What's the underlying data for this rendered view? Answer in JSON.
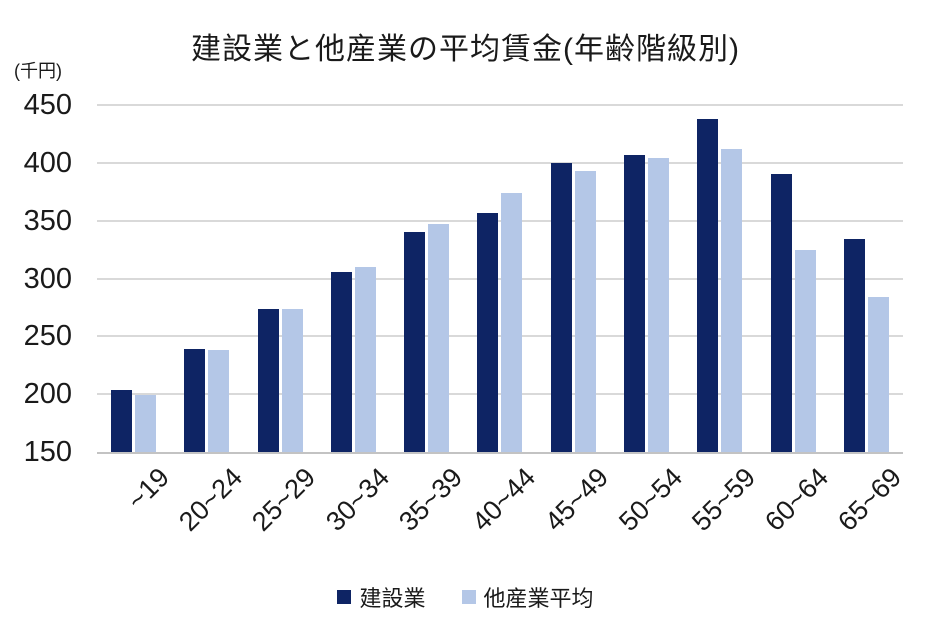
{
  "title": "建設業と他産業の平均賃金(年齢階級別)",
  "unit_label": "(千円)",
  "colors": {
    "background": "#FFFFFF",
    "gridline": "#D9D9D9",
    "axis_line": "#C3C3C3",
    "text": "#1A1A1A",
    "series_construction": "#0E2464",
    "series_other": "#B4C7E7"
  },
  "legend": {
    "position": "bottom",
    "items": [
      {
        "label": "建設業",
        "color": "#0E2464"
      },
      {
        "label": "他産業平均",
        "color": "#B4C7E7"
      }
    ]
  },
  "chart_data": {
    "type": "bar",
    "title": "建設業と他産業の平均賃金(年齢階級別)",
    "ylabel": "(千円)",
    "xlabel": "",
    "categories": [
      "~19",
      "20~24",
      "25~29",
      "30~34",
      "35~39",
      "40~44",
      "45~49",
      "50~54",
      "55~59",
      "60~64",
      "65~69"
    ],
    "series": [
      {
        "name": "建設業",
        "color": "#0E2464",
        "values": [
          204,
          239,
          274,
          306,
          340,
          357,
          400,
          407,
          438,
          390,
          334
        ]
      },
      {
        "name": "他産業平均",
        "color": "#B4C7E7",
        "values": [
          199,
          238,
          274,
          310,
          347,
          374,
          393,
          404,
          412,
          325,
          284
        ]
      }
    ],
    "ylim": [
      150,
      450
    ],
    "yticks": [
      450,
      400,
      350,
      300,
      250,
      200,
      150
    ],
    "grid": true,
    "legend_position": "bottom"
  }
}
